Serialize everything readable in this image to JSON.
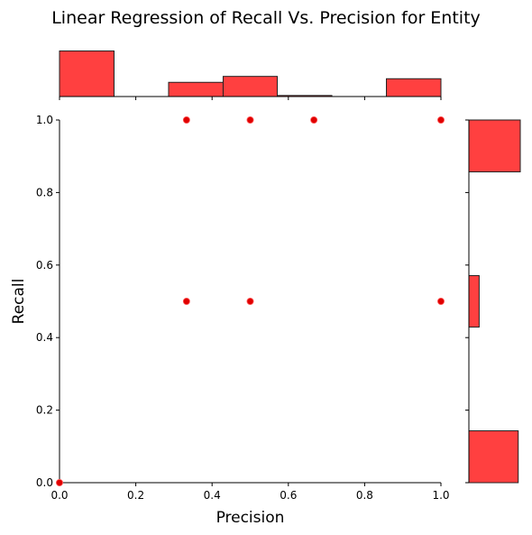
{
  "chart_data": {
    "type": "scatter",
    "title": "Linear Regression of Recall Vs. Precision for Entity",
    "xlabel": "Precision",
    "ylabel": "Recall",
    "xlim": [
      0,
      1
    ],
    "ylim": [
      0,
      1
    ],
    "xticks": [
      "0.0",
      "0.2",
      "0.4",
      "0.6",
      "0.8",
      "1.0"
    ],
    "yticks": [
      "0.0",
      "0.2",
      "0.4",
      "0.6",
      "0.8",
      "1.0"
    ],
    "grid": false,
    "points": [
      {
        "x": 0.0,
        "y": 0.0
      },
      {
        "x": 0.333,
        "y": 1.0
      },
      {
        "x": 0.5,
        "y": 1.0
      },
      {
        "x": 0.667,
        "y": 1.0
      },
      {
        "x": 1.0,
        "y": 1.0
      },
      {
        "x": 0.333,
        "y": 0.5
      },
      {
        "x": 0.5,
        "y": 0.5
      },
      {
        "x": 1.0,
        "y": 0.5
      }
    ],
    "x_histogram": {
      "bins": [
        {
          "x0": 0.0,
          "x1": 0.143,
          "count": 0.215
        },
        {
          "x0": 0.286,
          "x1": 0.429,
          "count": 0.067
        },
        {
          "x0": 0.429,
          "x1": 0.571,
          "count": 0.095
        },
        {
          "x0": 0.571,
          "x1": 0.714,
          "count": 0.005
        },
        {
          "x0": 0.857,
          "x1": 1.0,
          "count": 0.084
        }
      ]
    },
    "y_histogram": {
      "bins": [
        {
          "y0": 0.0,
          "y1": 0.143,
          "count": 0.96
        },
        {
          "y0": 0.429,
          "y1": 0.571,
          "count": 0.2
        },
        {
          "y0": 0.857,
          "y1": 1.0,
          "count": 1.0
        }
      ]
    },
    "colors": {
      "bar_fill": "#ff4040",
      "bar_stroke": "#222222",
      "point": "#e00000"
    }
  }
}
